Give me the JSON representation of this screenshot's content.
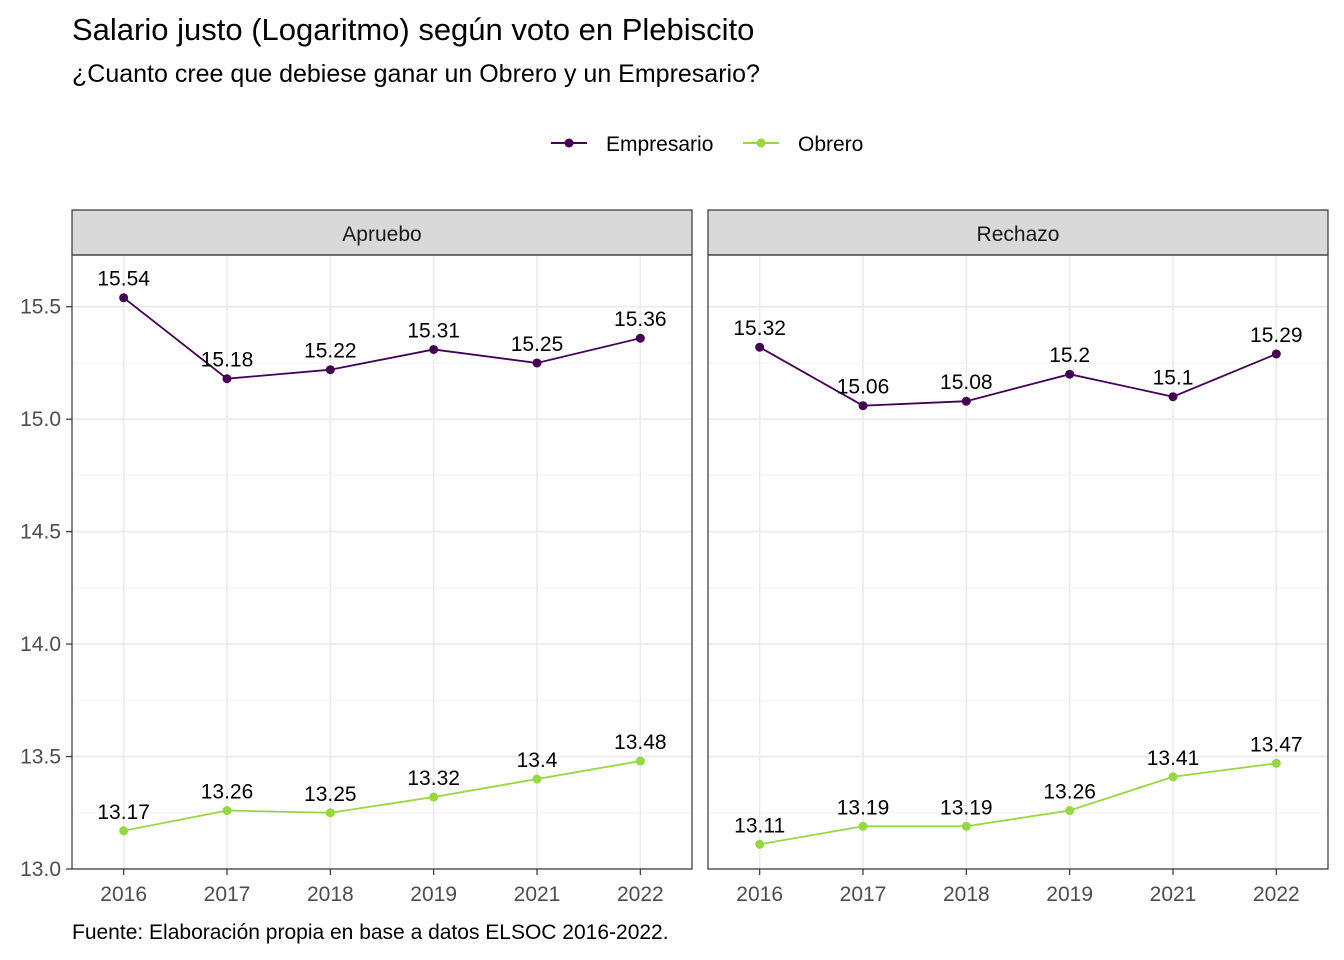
{
  "chart_data": {
    "type": "line",
    "title": "Salario justo (Logaritmo) según voto en Plebiscito",
    "subtitle": "¿Cuanto cree que debiese ganar un Obrero  y un Empresario?",
    "caption": "Fuente: Elaboración propia en base a datos ELSOC 2016-2022.",
    "legend_position": "top",
    "grid": true,
    "x": [
      "2016",
      "2017",
      "2018",
      "2019",
      "2021",
      "2022"
    ],
    "ylim": [
      13.0,
      15.73
    ],
    "yticks": [
      13.0,
      13.5,
      14.0,
      14.5,
      15.0,
      15.5
    ],
    "ytick_labels": [
      "13.0",
      "13.5",
      "14.0",
      "14.5",
      "15.0",
      "15.5"
    ],
    "series_styles": [
      {
        "name": "Empresario",
        "color": "#440154"
      },
      {
        "name": "Obrero",
        "color": "#95D840"
      }
    ],
    "panels": [
      {
        "name": "Apruebo",
        "series": [
          {
            "name": "Empresario",
            "values": [
              15.54,
              15.18,
              15.22,
              15.31,
              15.25,
              15.36
            ]
          },
          {
            "name": "Obrero",
            "values": [
              13.17,
              13.26,
              13.25,
              13.32,
              13.4,
              13.48
            ]
          }
        ],
        "labels": [
          [
            "15.54",
            "15.18",
            "15.22",
            "15.31",
            "15.25",
            "15.36"
          ],
          [
            "13.17",
            "13.26",
            "13.25",
            "13.32",
            "13.4",
            "13.48"
          ]
        ]
      },
      {
        "name": "Rechazo",
        "series": [
          {
            "name": "Empresario",
            "values": [
              15.32,
              15.06,
              15.08,
              15.2,
              15.1,
              15.29
            ]
          },
          {
            "name": "Obrero",
            "values": [
              13.11,
              13.19,
              13.19,
              13.26,
              13.41,
              13.47
            ]
          }
        ],
        "labels": [
          [
            "15.32",
            "15.06",
            "15.08",
            "15.2",
            "15.1",
            "15.29"
          ],
          [
            "13.11",
            "13.19",
            "13.19",
            "13.26",
            "13.41",
            "13.47"
          ]
        ]
      }
    ]
  }
}
